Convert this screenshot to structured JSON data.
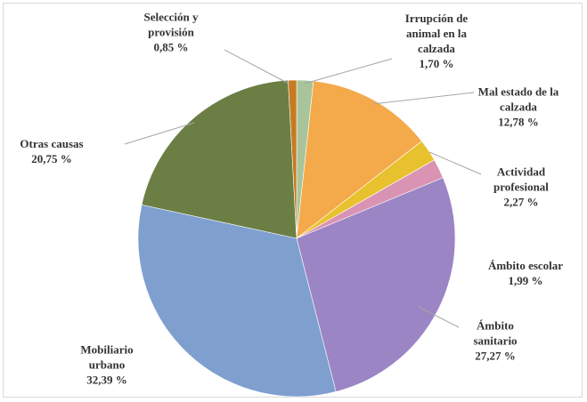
{
  "chart_data": {
    "type": "pie",
    "categories": [
      "Irrupción de animal en la calzada",
      "Mal estado de la calzada",
      "Actividad profesional",
      "Ámbito escolar",
      "Ámbito sanitario",
      "Mobiliario urbano",
      "Otras causas",
      "Selección y provisión"
    ],
    "values": [
      1.7,
      12.78,
      2.27,
      1.99,
      27.27,
      32.39,
      20.75,
      0.85
    ],
    "value_labels": [
      "1,70 %",
      "12,78 %",
      "2,27 %",
      "1,99 %",
      "27,27 %",
      "32,39 %",
      "20,75 %",
      "0,85 %"
    ],
    "colors": [
      "#a9c49a",
      "#f4a94a",
      "#e8c22e",
      "#d993b3",
      "#9b85c4",
      "#7f9fcf",
      "#6b7f45",
      "#c87a1f"
    ]
  }
}
